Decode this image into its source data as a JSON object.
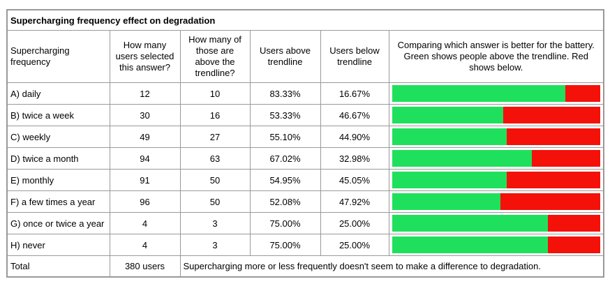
{
  "title": "Supercharging frequency effect on degradation",
  "colors": {
    "green": "#1fe05c",
    "red": "#f41109",
    "yellow": "#f8f13c",
    "border": "#999999"
  },
  "chart_data": {
    "type": "table",
    "title": "Supercharging frequency effect on degradation",
    "columns": [
      "Supercharging frequency",
      "How many users selected this answer?",
      "How many of those are above the trendline?",
      "Users above trendline",
      "Users below trendline",
      "Comparing which answer is better for the battery. Green shows people above the trendline. Red shows below."
    ],
    "rows": [
      {
        "label": "A) daily",
        "users": "12",
        "above": "10",
        "above_pct": "83.33%",
        "below_pct": "16.67%",
        "green_pct": 83.33
      },
      {
        "label": "B) twice a week",
        "users": "30",
        "above": "16",
        "above_pct": "53.33%",
        "below_pct": "46.67%",
        "green_pct": 53.33
      },
      {
        "label": "C) weekly",
        "users": "49",
        "above": "27",
        "above_pct": "55.10%",
        "below_pct": "44.90%",
        "green_pct": 55.1
      },
      {
        "label": "D) twice a month",
        "users": "94",
        "above": "63",
        "above_pct": "67.02%",
        "below_pct": "32.98%",
        "green_pct": 67.02
      },
      {
        "label": "E) monthly",
        "users": "91",
        "above": "50",
        "above_pct": "54.95%",
        "below_pct": "45.05%",
        "green_pct": 54.95
      },
      {
        "label": "F) a few times a year",
        "users": "96",
        "above": "50",
        "above_pct": "52.08%",
        "below_pct": "47.92%",
        "green_pct": 52.08
      },
      {
        "label": "G) once or twice a year",
        "users": "4",
        "above": "3",
        "above_pct": "75.00%",
        "below_pct": "25.00%",
        "green_pct": 75.0
      },
      {
        "label": "H) never",
        "users": "4",
        "above": "3",
        "above_pct": "75.00%",
        "below_pct": "25.00%",
        "green_pct": 75.0
      }
    ],
    "bar_legend": {
      "green_means": "above trendline",
      "red_means": "below trendline"
    },
    "total": {
      "label": "Total",
      "users": "380 users",
      "note": "Supercharging more or less frequently doesn't seem to make a difference to degradation."
    }
  }
}
